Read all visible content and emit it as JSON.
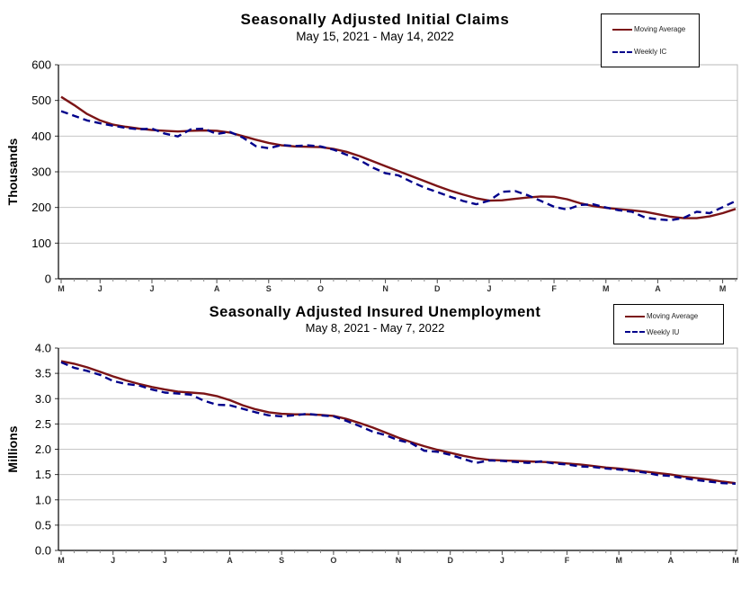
{
  "page": {
    "background": "#ffffff"
  },
  "chart_data": [
    {
      "type": "line",
      "title": "Seasonally Adjusted Initial Claims",
      "subtitle": "May 15, 2021 - May 14, 2022",
      "ylabel": "Thousands",
      "xlabel": "",
      "units": "thousands",
      "ylim": [
        0,
        600
      ],
      "y_ticks": [
        "0",
        "100",
        "200",
        "300",
        "400",
        "500",
        "600"
      ],
      "x_tick_labels": [
        "M",
        "J",
        "J",
        "A",
        "S",
        "O",
        "N",
        "D",
        "J",
        "F",
        "M",
        "A",
        "M"
      ],
      "x_tick_weeks": [
        1,
        4,
        8,
        13,
        17,
        21,
        26,
        30,
        34,
        39,
        43,
        47,
        52
      ],
      "n_weeks": 53,
      "grid": true,
      "legend_position": "top-right",
      "legend": [
        {
          "label": "Moving Average",
          "color": "#7B1416",
          "style": "solid"
        },
        {
          "label": "Weekly IC",
          "color": "#00008B",
          "style": "dashed"
        }
      ],
      "series": [
        {
          "name": "Moving Average",
          "values": [
            510,
            487,
            462,
            444,
            432,
            426,
            421,
            417,
            415,
            413,
            415,
            416,
            415,
            410,
            400,
            390,
            381,
            374,
            371,
            370,
            369,
            364,
            356,
            344,
            330,
            316,
            302,
            288,
            274,
            260,
            247,
            236,
            226,
            219,
            220,
            224,
            228,
            231,
            230,
            223,
            212,
            204,
            199,
            195,
            192,
            188,
            181,
            174,
            170,
            170,
            175,
            184,
            196
          ]
        },
        {
          "name": "Weekly IC",
          "values": [
            470,
            457,
            444,
            436,
            429,
            423,
            419,
            421,
            407,
            399,
            419,
            421,
            406,
            412,
            396,
            372,
            366,
            375,
            372,
            374,
            371,
            362,
            348,
            333,
            312,
            296,
            290,
            272,
            256,
            243,
            230,
            218,
            209,
            219,
            244,
            246,
            234,
            218,
            202,
            194,
            207,
            209,
            200,
            192,
            188,
            172,
            167,
            164,
            171,
            188,
            184,
            201,
            218
          ]
        }
      ]
    },
    {
      "type": "line",
      "title": "Seasonally Adjusted Insured Unemployment",
      "subtitle": "May 8, 2021 - May 7, 2022",
      "ylabel": "Millions",
      "xlabel": "",
      "units": "millions",
      "ylim": [
        0,
        4
      ],
      "y_ticks": [
        "0.0",
        "0.5",
        "1.0",
        "1.5",
        "2.0",
        "2.5",
        "3.0",
        "3.5",
        "4.0"
      ],
      "x_tick_labels": [
        "M",
        "J",
        "J",
        "A",
        "S",
        "O",
        "N",
        "D",
        "J",
        "F",
        "M",
        "A",
        "M"
      ],
      "x_tick_weeks": [
        1,
        5,
        9,
        14,
        18,
        22,
        27,
        31,
        35,
        40,
        44,
        48,
        53
      ],
      "n_weeks": 53,
      "grid": true,
      "legend_position": "top-right",
      "legend": [
        {
          "label": "Moving Average",
          "color": "#7B1416",
          "style": "solid"
        },
        {
          "label": "Weekly IU",
          "color": "#00008B",
          "style": "dashed"
        }
      ],
      "series": [
        {
          "name": "Moving Average",
          "values": [
            3.74,
            3.69,
            3.62,
            3.53,
            3.44,
            3.36,
            3.29,
            3.23,
            3.18,
            3.14,
            3.12,
            3.1,
            3.05,
            2.97,
            2.87,
            2.79,
            2.73,
            2.7,
            2.69,
            2.69,
            2.68,
            2.66,
            2.6,
            2.52,
            2.43,
            2.33,
            2.23,
            2.14,
            2.06,
            1.99,
            1.93,
            1.87,
            1.82,
            1.79,
            1.78,
            1.77,
            1.76,
            1.75,
            1.74,
            1.72,
            1.7,
            1.67,
            1.64,
            1.62,
            1.59,
            1.56,
            1.53,
            1.5,
            1.46,
            1.43,
            1.4,
            1.36,
            1.33
          ]
        },
        {
          "name": "Weekly IU",
          "values": [
            3.72,
            3.61,
            3.55,
            3.47,
            3.35,
            3.29,
            3.26,
            3.18,
            3.12,
            3.1,
            3.08,
            2.96,
            2.88,
            2.87,
            2.8,
            2.73,
            2.67,
            2.65,
            2.67,
            2.7,
            2.67,
            2.65,
            2.56,
            2.46,
            2.35,
            2.28,
            2.18,
            2.12,
            1.97,
            1.95,
            1.89,
            1.81,
            1.73,
            1.78,
            1.77,
            1.75,
            1.73,
            1.76,
            1.72,
            1.7,
            1.66,
            1.65,
            1.62,
            1.6,
            1.57,
            1.54,
            1.49,
            1.47,
            1.43,
            1.39,
            1.36,
            1.33,
            1.32
          ]
        }
      ]
    }
  ]
}
